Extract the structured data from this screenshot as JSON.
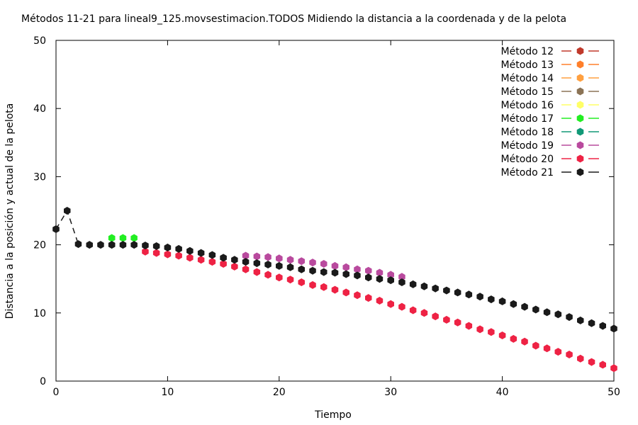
{
  "chart_data": {
    "type": "line",
    "title": "Métodos 11-21 para lineal9_125.movsestimacion.TODOS Midiendo la distancia a la coordenada y de la pelota",
    "xlabel": "Tiempo",
    "ylabel": "Distancia a la posición y actual de la pelota",
    "xlim": [
      0,
      50
    ],
    "ylim": [
      0,
      50
    ],
    "x_ticks": [
      "0",
      "10",
      "20",
      "30",
      "40",
      "50"
    ],
    "y_ticks": [
      "0",
      "10",
      "20",
      "30",
      "40",
      "50"
    ],
    "grid": false,
    "legend_position": "top-right",
    "series": [
      {
        "name": "Método 12",
        "color": "#c0392b",
        "x": [],
        "y": []
      },
      {
        "name": "Método 13",
        "color": "#ff7f2a",
        "x": [],
        "y": []
      },
      {
        "name": "Método 14",
        "color": "#ffa040",
        "x": [],
        "y": []
      },
      {
        "name": "Método 15",
        "color": "#8b7355",
        "x": [],
        "y": []
      },
      {
        "name": "Método 16",
        "color": "#ffff66",
        "x": [],
        "y": []
      },
      {
        "name": "Método 17",
        "color": "#22ee22",
        "x": [
          5,
          6,
          7
        ],
        "y": [
          21.0,
          21.0,
          21.0
        ]
      },
      {
        "name": "Método 18",
        "color": "#119977",
        "x": [],
        "y": []
      },
      {
        "name": "Método 19",
        "color": "#b94a9e",
        "x": [
          17,
          18,
          19,
          20,
          21,
          22,
          23,
          24,
          25,
          26,
          27,
          28,
          29,
          30,
          31
        ],
        "y": [
          18.4,
          18.3,
          18.2,
          18.0,
          17.8,
          17.6,
          17.4,
          17.2,
          16.9,
          16.7,
          16.4,
          16.2,
          15.9,
          15.6,
          15.3
        ]
      },
      {
        "name": "Método 20",
        "color": "#ee2244",
        "x": [
          8,
          9,
          10,
          11,
          12,
          13,
          14,
          15,
          16,
          17,
          18,
          19,
          20,
          21,
          22,
          23,
          24,
          25,
          26,
          27,
          28,
          29,
          30,
          31,
          32,
          33,
          34,
          35,
          36,
          37,
          38,
          39,
          40,
          41,
          42,
          43,
          44,
          45,
          46,
          47,
          48,
          49,
          50
        ],
        "y": [
          19.0,
          18.8,
          18.6,
          18.4,
          18.1,
          17.8,
          17.5,
          17.2,
          16.8,
          16.4,
          16.0,
          15.6,
          15.2,
          14.9,
          14.5,
          14.1,
          13.8,
          13.4,
          13.0,
          12.6,
          12.2,
          11.8,
          11.3,
          10.9,
          10.4,
          10.0,
          9.5,
          9.0,
          8.6,
          8.1,
          7.6,
          7.2,
          6.7,
          6.2,
          5.8,
          5.2,
          4.8,
          4.3,
          3.9,
          3.3,
          2.8,
          2.4,
          1.9
        ]
      },
      {
        "name": "Método 21",
        "color": "#1a1a1a",
        "x": [
          0,
          1,
          2,
          3,
          4,
          5,
          6,
          7,
          8,
          9,
          10,
          11,
          12,
          13,
          14,
          15,
          16,
          17,
          18,
          19,
          20,
          21,
          22,
          23,
          24,
          25,
          26,
          27,
          28,
          29,
          30,
          31,
          32,
          33,
          34,
          35,
          36,
          37,
          38,
          39,
          40,
          41,
          42,
          43,
          44,
          45,
          46,
          47,
          48,
          49,
          50
        ],
        "y": [
          22.3,
          25.0,
          20.1,
          20.0,
          20.0,
          20.0,
          20.0,
          20.0,
          19.9,
          19.8,
          19.6,
          19.4,
          19.1,
          18.8,
          18.5,
          18.1,
          17.8,
          17.5,
          17.3,
          17.1,
          16.9,
          16.7,
          16.4,
          16.2,
          16.0,
          15.9,
          15.7,
          15.5,
          15.2,
          15.0,
          14.8,
          14.5,
          14.2,
          13.9,
          13.6,
          13.3,
          13.0,
          12.7,
          12.4,
          12.0,
          11.7,
          11.3,
          10.9,
          10.5,
          10.1,
          9.8,
          9.4,
          8.9,
          8.5,
          8.1,
          7.7
        ]
      }
    ]
  }
}
